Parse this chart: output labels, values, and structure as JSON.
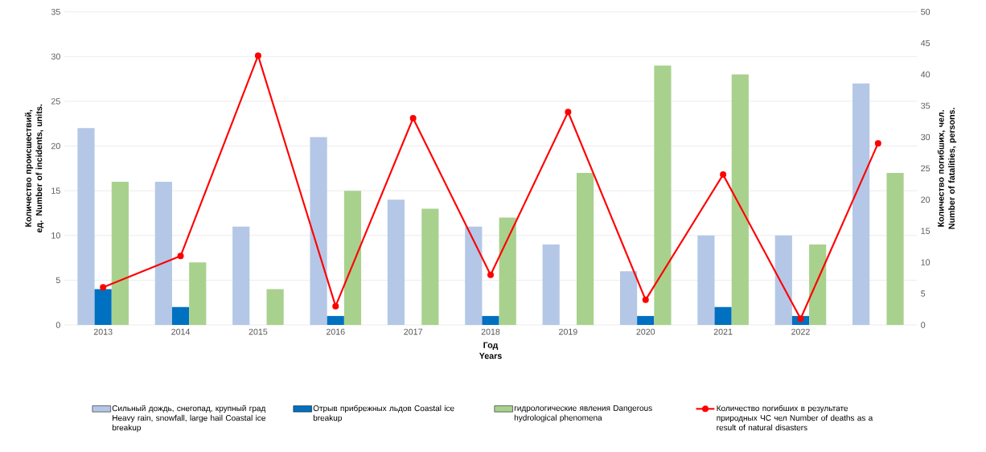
{
  "chart_data": {
    "type": "bar",
    "xlabel": "Год Years",
    "ylabel": "Количество происшествий, ед. Number of incidents, units.",
    "y2label": "Количество погибших, чел. Number of fatalities, persons.",
    "categories": [
      "2013",
      "2014",
      "2015",
      "2016",
      "2017",
      "2018",
      "2019",
      "2020",
      "2021",
      "2022",
      null
    ],
    "series": [
      {
        "name": "Сильный дождь, снегопад, крупный град Heavy rain, snowfall, large hail Coastal ice breakup",
        "color": "#b4c7e7",
        "values": [
          22,
          16,
          11,
          21,
          14,
          11,
          9,
          6,
          10,
          10,
          27
        ]
      },
      {
        "name": "Отрыв прибрежных льдов Coastal ice breakup",
        "color": "#0070c0",
        "values": [
          4,
          2,
          null,
          1,
          null,
          1,
          null,
          1,
          2,
          1,
          null
        ]
      },
      {
        "name": "гидрологические явления Dangerous hydrological phenomena",
        "color": "#a9d18e",
        "values": [
          16,
          7,
          4,
          15,
          13,
          12,
          17,
          29,
          28,
          9,
          17
        ]
      },
      {
        "name": "Количество погибших в результате природных ЧС чел Number of deaths as a result of natural disasters",
        "color": "#ff0000",
        "type": "line",
        "axis": "y2",
        "marker": "circle",
        "line_style": "solid",
        "values": [
          6,
          11,
          43,
          3,
          33,
          8,
          34,
          4,
          24,
          1,
          29
        ]
      }
    ],
    "ylim": [
      0,
      35
    ],
    "yticks": [
      0,
      5,
      10,
      15,
      20,
      25,
      30,
      35
    ],
    "y2lim": [
      0,
      50
    ],
    "y2ticks": [
      0,
      5,
      10,
      15,
      20,
      25,
      30,
      35,
      40,
      45,
      50
    ],
    "grid": "y",
    "legend": "bottom"
  }
}
